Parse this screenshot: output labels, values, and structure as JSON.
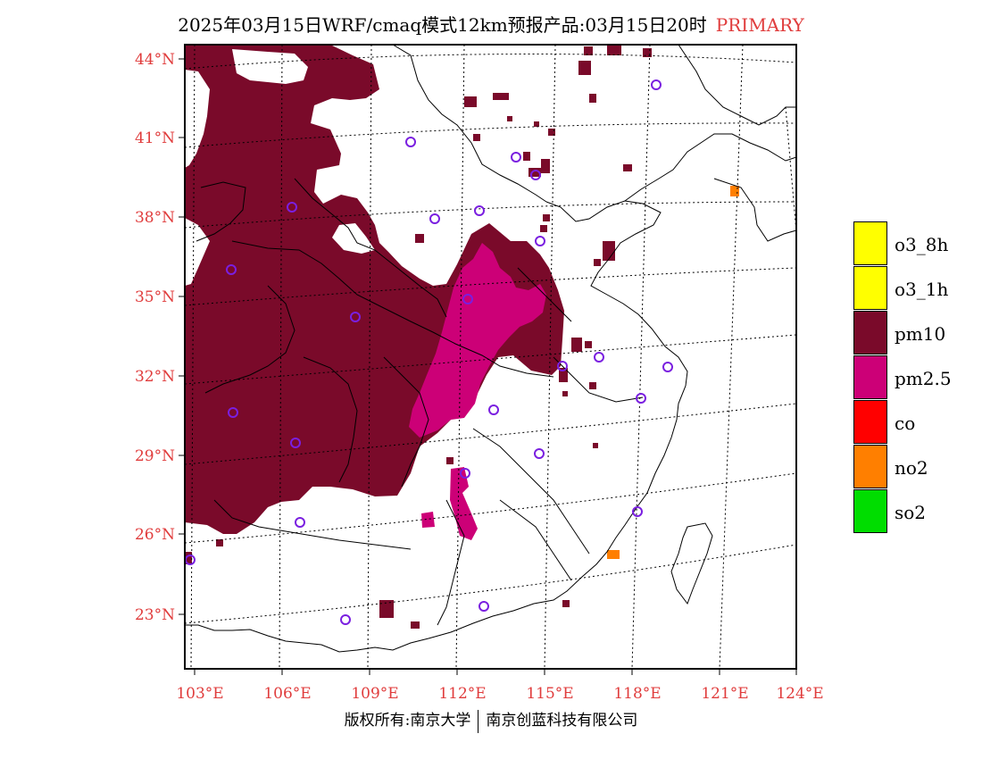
{
  "header": {
    "title": "2025年03月15日WRF/cmaq模式12km预报产品:03月15日20时",
    "tag": "PRIMARY"
  },
  "axes": {
    "lat_labels": [
      "44°N",
      "41°N",
      "38°N",
      "35°N",
      "32°N",
      "29°N",
      "26°N",
      "23°N"
    ],
    "lon_labels": [
      "103°E",
      "106°E",
      "109°E",
      "112°E",
      "115°E",
      "118°E",
      "121°E",
      "124°E"
    ]
  },
  "legend": [
    {
      "label": "o3_8h",
      "color": "#ffff00"
    },
    {
      "label": "o3_1h",
      "color": "#ffff00"
    },
    {
      "label": "pm10",
      "color": "#7a0a2a"
    },
    {
      "label": "pm2.5",
      "color": "#cc0077"
    },
    {
      "label": "co",
      "color": "#ff0000"
    },
    {
      "label": "no2",
      "color": "#ff7f00"
    },
    {
      "label": "so2",
      "color": "#00dd00"
    }
  ],
  "colors": {
    "pm10": "#7a0a2a",
    "pm25": "#cc0077",
    "no2": "#ff7f00",
    "station": "#7a1fe0",
    "axis_label": "#e03c3c"
  },
  "footer": {
    "left": "版权所有:南京大学",
    "right": "南京创蓝科技有限公司"
  }
}
